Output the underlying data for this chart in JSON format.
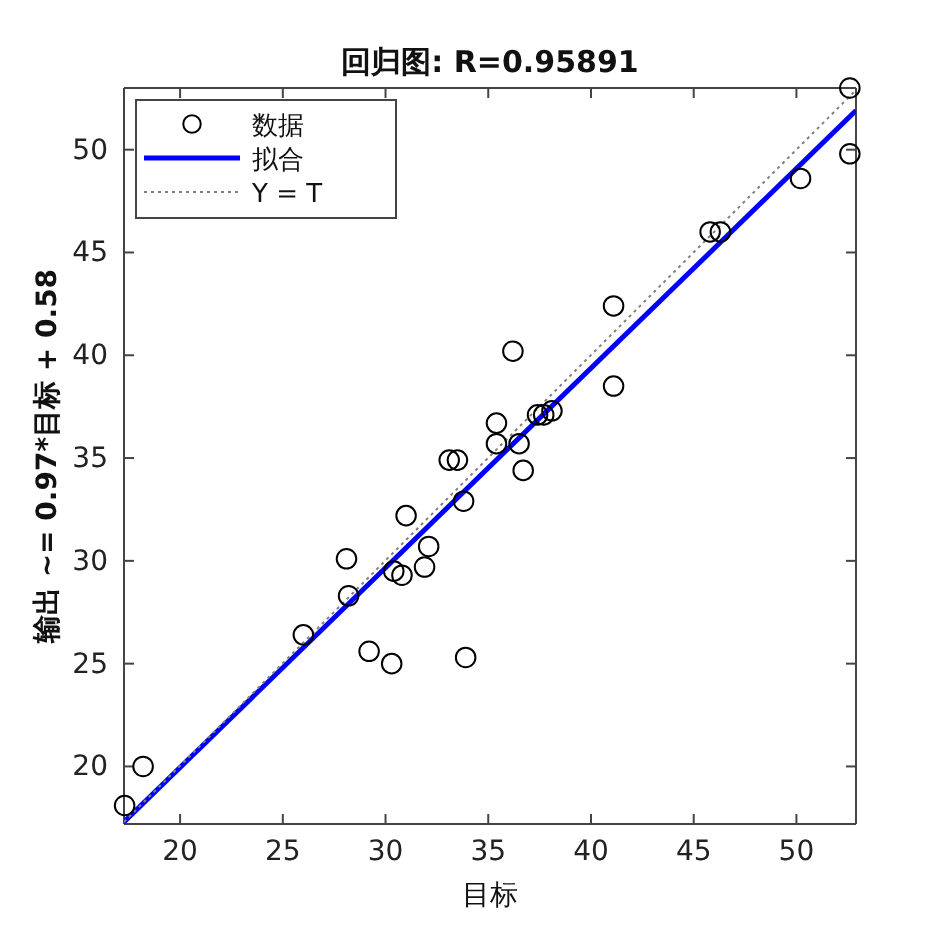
{
  "chart_data": {
    "type": "scatter",
    "title": "回归图: R=0.95891",
    "xlabel": "目标",
    "ylabel": "输出 ~= 0.97*目标 + 0.58",
    "xlim": [
      17.27,
      52.9
    ],
    "ylim": [
      17.2,
      53
    ],
    "xticks": [
      20,
      25,
      30,
      35,
      40,
      45,
      50
    ],
    "yticks": [
      20,
      25,
      30,
      35,
      40,
      45,
      50
    ],
    "grid": false,
    "legend": "top left",
    "series": [
      {
        "name": "数据",
        "marker": "circle",
        "color": "#000000",
        "x": [
          17.3,
          18.2,
          26.0,
          28.1,
          28.2,
          29.2,
          30.3,
          30.4,
          30.8,
          31.0,
          31.9,
          32.1,
          33.1,
          33.5,
          33.8,
          33.9,
          35.4,
          35.4,
          36.2,
          36.5,
          36.7,
          37.4,
          37.7,
          38.1,
          41.1,
          41.1,
          45.8,
          46.3,
          50.2,
          52.6,
          52.6
        ],
        "values": [
          18.1,
          20.0,
          26.4,
          30.1,
          28.3,
          25.6,
          25.0,
          29.5,
          29.3,
          32.2,
          29.7,
          30.7,
          34.9,
          34.9,
          32.9,
          25.3,
          36.7,
          35.7,
          40.2,
          35.7,
          34.4,
          37.1,
          37.1,
          37.3,
          42.4,
          38.5,
          46.0,
          46.0,
          48.6,
          49.8,
          53.0
        ]
      },
      {
        "name": "拟合",
        "type": "line",
        "marker": "none",
        "line_style": "solid",
        "color": "#0000ff",
        "x": [
          17.27,
          52.9
        ],
        "values": [
          17.3,
          51.9
        ]
      },
      {
        "name": "Y = T",
        "type": "line",
        "marker": "none",
        "line_style": "dotted",
        "color": "#808080",
        "x": [
          17.27,
          52.9
        ],
        "values": [
          17.3,
          52.9
        ]
      }
    ]
  }
}
